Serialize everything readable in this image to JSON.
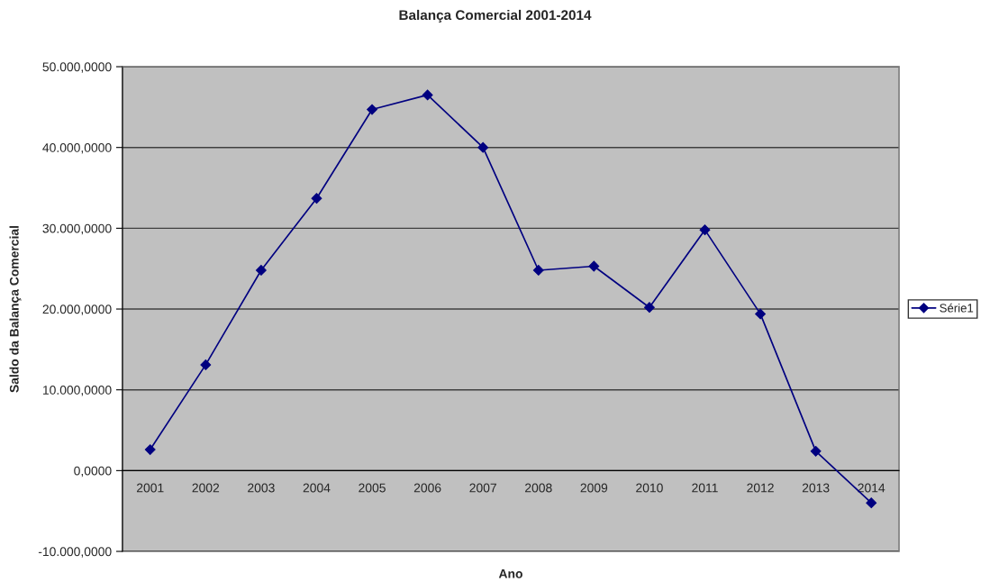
{
  "chart_data": {
    "type": "line",
    "title": "Balança Comercial 2001-2014",
    "xlabel": "Ano",
    "ylabel": "Saldo da Balança Comercial",
    "categories": [
      "2001",
      "2002",
      "2003",
      "2004",
      "2005",
      "2006",
      "2007",
      "2008",
      "2009",
      "2010",
      "2011",
      "2012",
      "2013",
      "2014"
    ],
    "series": [
      {
        "name": "Série1",
        "color": "#000080",
        "values": [
          2600,
          13100,
          24800,
          33700,
          44700,
          46500,
          40000,
          24800,
          25300,
          20200,
          29800,
          19400,
          2400,
          -4000
        ]
      }
    ],
    "ylim": [
      -10000,
      50000
    ],
    "yticks": [
      {
        "value": -10000,
        "label": "-10.000,0000"
      },
      {
        "value": 0,
        "label": "0,0000"
      },
      {
        "value": 10000,
        "label": "10.000,0000"
      },
      {
        "value": 20000,
        "label": "20.000,0000"
      },
      {
        "value": 30000,
        "label": "30.000,0000"
      },
      {
        "value": 40000,
        "label": "40.000,0000"
      },
      {
        "value": 50000,
        "label": "50.000,0000"
      }
    ],
    "grid": "y",
    "legend": "right",
    "marker": "diamond",
    "line_style": "solid"
  }
}
